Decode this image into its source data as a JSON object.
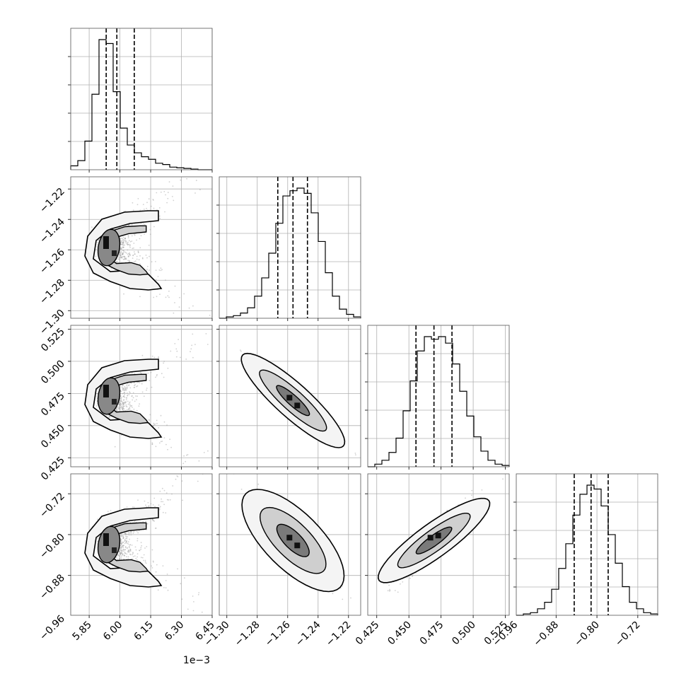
{
  "chart_data": {
    "type": "corner",
    "description_free": true,
    "parameters": [
      {
        "range": [
          5.76,
          6.45
        ],
        "ticks": [
          "5.85",
          "6.00",
          "6.15",
          "6.30",
          "6.45"
        ],
        "tick_values": [
          5.85,
          6.0,
          6.15,
          6.3,
          6.45
        ],
        "offset_label": "1e−3",
        "quantiles": [
          5.933,
          5.985,
          6.07
        ]
      },
      {
        "range": [
          -1.305,
          -1.212
        ],
        "ticks": [
          "−1.30",
          "−1.28",
          "−1.26",
          "−1.24",
          "−1.22"
        ],
        "tick_values": [
          -1.3,
          -1.28,
          -1.26,
          -1.24,
          -1.22
        ],
        "quantiles": [
          -1.2665,
          -1.2565,
          -1.247
        ]
      },
      {
        "range": [
          0.418,
          0.528
        ],
        "ticks": [
          "0.425",
          "0.450",
          "0.475",
          "0.500",
          "0.525"
        ],
        "tick_values": [
          0.425,
          0.45,
          0.475,
          0.5,
          0.525
        ],
        "quantiles": [
          0.4555,
          0.4695,
          0.4835
        ]
      },
      {
        "range": [
          -0.958,
          -0.681
        ],
        "ticks": [
          "−0.96",
          "−0.88",
          "−0.80",
          "−0.72"
        ],
        "tick_values": [
          -0.96,
          -0.88,
          -0.8,
          -0.72
        ],
        "quantiles": [
          -0.8445,
          -0.8115,
          -0.778
        ]
      }
    ],
    "histograms": [
      [
        0.03,
        0.07,
        0.22,
        0.58,
        1.0,
        0.97,
        0.6,
        0.32,
        0.19,
        0.13,
        0.1,
        0.08,
        0.05,
        0.04,
        0.02,
        0.015,
        0.01,
        0.005,
        0.0,
        0.0
      ],
      [
        0.0,
        0.01,
        0.02,
        0.04,
        0.08,
        0.17,
        0.31,
        0.5,
        0.73,
        0.94,
        0.98,
        1.0,
        0.96,
        0.81,
        0.59,
        0.35,
        0.17,
        0.07,
        0.03,
        0.01
      ],
      [
        0.0,
        0.02,
        0.05,
        0.11,
        0.22,
        0.43,
        0.66,
        0.89,
        1.0,
        0.98,
        1.0,
        0.95,
        0.79,
        0.58,
        0.39,
        0.23,
        0.12,
        0.05,
        0.02,
        0.01
      ],
      [
        0.0,
        0.01,
        0.02,
        0.05,
        0.1,
        0.2,
        0.36,
        0.55,
        0.77,
        0.93,
        1.0,
        0.97,
        0.84,
        0.62,
        0.4,
        0.22,
        0.1,
        0.05,
        0.02,
        0.01
      ]
    ],
    "grid": true
  }
}
